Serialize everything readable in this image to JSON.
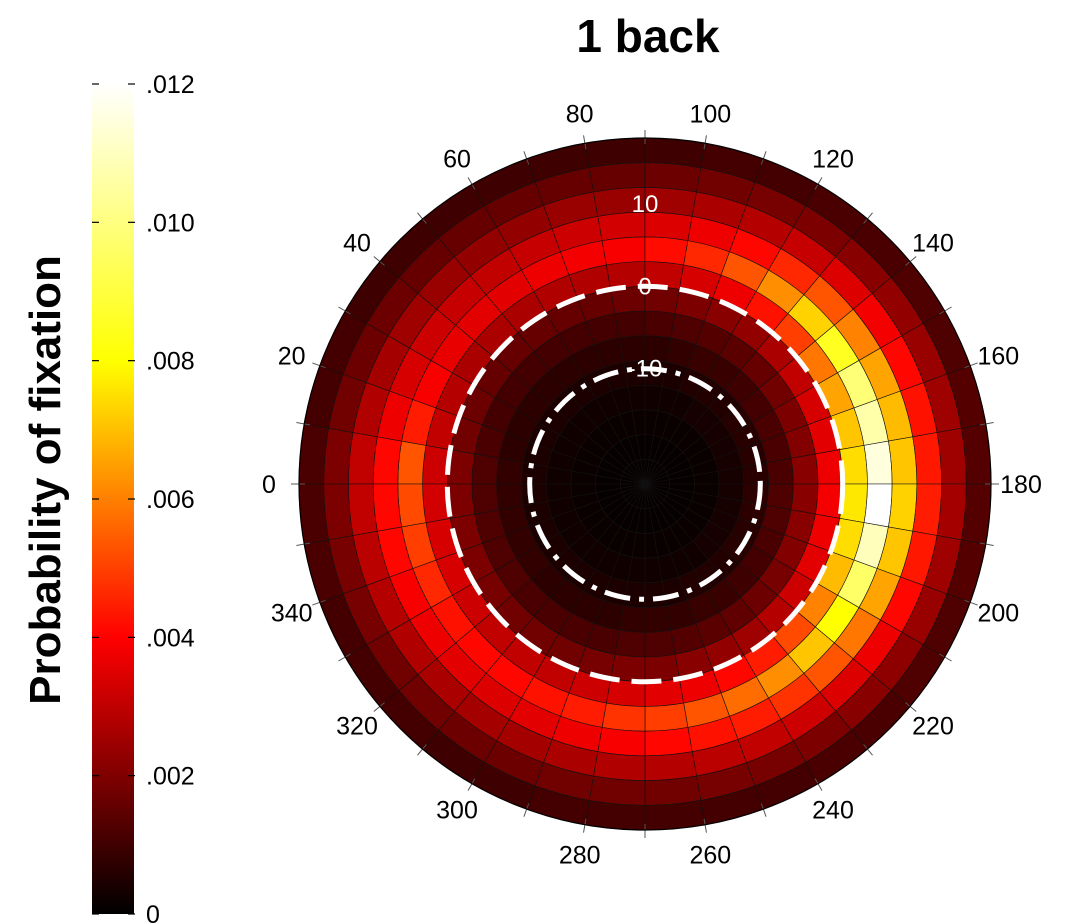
{
  "chart_data": {
    "type": "heatmap",
    "subtype": "polar",
    "title": "1 back",
    "colorbar": {
      "label": "Probability of fixation",
      "ticks": [
        "0",
        ".002",
        ".004",
        ".006",
        ".008",
        ".010",
        ".012"
      ],
      "min": 0,
      "max": 0.012,
      "colormap": "hot"
    },
    "angle_ticks": [
      "0",
      "20",
      "40",
      "60",
      "80",
      "100",
      "120",
      "140",
      "160",
      "180",
      "200",
      "220",
      "240",
      "260",
      "280",
      "300",
      "320",
      "340"
    ],
    "radial_labels": [
      "10",
      "0",
      "-10"
    ],
    "angle_bins": 36,
    "radius_bins": 14,
    "radius_range": [
      -24,
      18
    ],
    "reference_circles": [
      {
        "value": 0,
        "style": "dashed"
      },
      {
        "value": -10,
        "style": "dashdot"
      }
    ],
    "profile_notes": "rows = angle bins in 10-degree steps starting at 0 (left side); columns = radius bins from center outward",
    "peak_angles": [
      180,
      190,
      170,
      200,
      160,
      150,
      210
    ],
    "ring_baseline": [
      0.0001,
      0.0001,
      0.0002,
      0.0003,
      0.0005,
      0.0008,
      0.0012,
      0.0018,
      0.003,
      0.004,
      0.0034,
      0.0026,
      0.0018,
      0.0011
    ],
    "values": [
      [
        0.0001,
        0.0001,
        0.0002,
        0.0003,
        0.0005,
        0.0009,
        0.0014,
        0.0022,
        0.0036,
        0.006,
        0.0046,
        0.0034,
        0.0022,
        0.0013
      ],
      [
        0.0001,
        0.0001,
        0.0002,
        0.0003,
        0.0005,
        0.0008,
        0.0013,
        0.002,
        0.0034,
        0.005,
        0.0042,
        0.0031,
        0.002,
        0.0012
      ],
      [
        0.0001,
        0.0001,
        0.0002,
        0.0003,
        0.0005,
        0.0008,
        0.0012,
        0.0019,
        0.0032,
        0.0044,
        0.0038,
        0.0029,
        0.0019,
        0.0012
      ],
      [
        0.0001,
        0.0001,
        0.0002,
        0.0003,
        0.0005,
        0.0008,
        0.0012,
        0.0018,
        0.003,
        0.0041,
        0.0036,
        0.0028,
        0.0019,
        0.0011
      ],
      [
        0.0001,
        0.0001,
        0.0002,
        0.0003,
        0.0005,
        0.0008,
        0.0012,
        0.0018,
        0.003,
        0.004,
        0.0035,
        0.0027,
        0.0018,
        0.0011
      ],
      [
        0.0001,
        0.0001,
        0.0002,
        0.0003,
        0.0005,
        0.0008,
        0.0012,
        0.0018,
        0.003,
        0.004,
        0.0034,
        0.0026,
        0.0018,
        0.0011
      ],
      [
        0.0001,
        0.0001,
        0.0002,
        0.0003,
        0.0005,
        0.0008,
        0.0012,
        0.0018,
        0.0031,
        0.0042,
        0.0035,
        0.0026,
        0.0018,
        0.0011
      ],
      [
        0.0001,
        0.0001,
        0.0002,
        0.0003,
        0.0005,
        0.0008,
        0.0012,
        0.0018,
        0.0031,
        0.0043,
        0.0036,
        0.0027,
        0.0018,
        0.0011
      ],
      [
        0.0001,
        0.0001,
        0.0002,
        0.0003,
        0.0005,
        0.0008,
        0.0012,
        0.0019,
        0.0032,
        0.0044,
        0.0037,
        0.0027,
        0.0018,
        0.0011
      ],
      [
        0.0001,
        0.0001,
        0.0002,
        0.0003,
        0.0005,
        0.0008,
        0.0013,
        0.002,
        0.0034,
        0.0047,
        0.0039,
        0.0028,
        0.0019,
        0.0011
      ],
      [
        0.0001,
        0.0001,
        0.0002,
        0.0003,
        0.0005,
        0.0009,
        0.0014,
        0.0022,
        0.0038,
        0.0052,
        0.0042,
        0.003,
        0.002,
        0.0012
      ],
      [
        0.0001,
        0.0001,
        0.0002,
        0.0003,
        0.0006,
        0.001,
        0.0015,
        0.0024,
        0.0042,
        0.006,
        0.0046,
        0.0032,
        0.0021,
        0.0012
      ],
      [
        0.0001,
        0.0001,
        0.0002,
        0.0004,
        0.0006,
        0.001,
        0.0016,
        0.0026,
        0.0048,
        0.007,
        0.0052,
        0.0035,
        0.0022,
        0.0013
      ],
      [
        0.0001,
        0.0001,
        0.0002,
        0.0004,
        0.0006,
        0.0011,
        0.0018,
        0.003,
        0.0056,
        0.0082,
        0.006,
        0.0039,
        0.0024,
        0.0013
      ],
      [
        0.0001,
        0.0001,
        0.0002,
        0.0004,
        0.0007,
        0.0012,
        0.002,
        0.0034,
        0.0066,
        0.0094,
        0.0068,
        0.0043,
        0.0026,
        0.0014
      ],
      [
        0.0001,
        0.0001,
        0.0002,
        0.0004,
        0.0007,
        0.0013,
        0.0022,
        0.0038,
        0.0074,
        0.0104,
        0.0074,
        0.0046,
        0.0027,
        0.0014
      ],
      [
        0.0001,
        0.0001,
        0.0002,
        0.0004,
        0.0007,
        0.0013,
        0.0023,
        0.004,
        0.008,
        0.011,
        0.0078,
        0.0048,
        0.0028,
        0.0015
      ],
      [
        0.0001,
        0.0001,
        0.0002,
        0.0004,
        0.0007,
        0.0013,
        0.0024,
        0.0042,
        0.0084,
        0.0116,
        0.008,
        0.0049,
        0.0028,
        0.0015
      ],
      [
        0.0001,
        0.0001,
        0.0002,
        0.0004,
        0.0008,
        0.0014,
        0.0024,
        0.0043,
        0.0086,
        0.012,
        0.0082,
        0.005,
        0.0029,
        0.0015
      ],
      [
        0.0001,
        0.0001,
        0.0002,
        0.0004,
        0.0008,
        0.0014,
        0.0024,
        0.0042,
        0.0084,
        0.0112,
        0.008,
        0.0049,
        0.0028,
        0.0015
      ],
      [
        0.0001,
        0.0001,
        0.0002,
        0.0004,
        0.0007,
        0.0013,
        0.0023,
        0.004,
        0.0078,
        0.0102,
        0.0074,
        0.0046,
        0.0027,
        0.0014
      ],
      [
        0.0001,
        0.0001,
        0.0002,
        0.0004,
        0.0007,
        0.0012,
        0.0021,
        0.0036,
        0.0068,
        0.009,
        0.0066,
        0.0042,
        0.0025,
        0.0014
      ],
      [
        0.0001,
        0.0001,
        0.0002,
        0.0004,
        0.0006,
        0.0011,
        0.0019,
        0.0032,
        0.0058,
        0.008,
        0.006,
        0.0039,
        0.0024,
        0.0013
      ],
      [
        0.0001,
        0.0001,
        0.0002,
        0.0003,
        0.0006,
        0.001,
        0.0017,
        0.0028,
        0.005,
        0.007,
        0.0054,
        0.0036,
        0.0022,
        0.0013
      ],
      [
        0.0001,
        0.0001,
        0.0002,
        0.0003,
        0.0006,
        0.001,
        0.0016,
        0.0026,
        0.0046,
        0.0064,
        0.005,
        0.0034,
        0.0021,
        0.0012
      ],
      [
        0.0001,
        0.0001,
        0.0002,
        0.0003,
        0.0005,
        0.0009,
        0.0015,
        0.0024,
        0.0042,
        0.006,
        0.0048,
        0.0033,
        0.0021,
        0.0012
      ],
      [
        0.0001,
        0.0001,
        0.0002,
        0.0003,
        0.0005,
        0.0009,
        0.0014,
        0.0022,
        0.004,
        0.0056,
        0.0046,
        0.0032,
        0.002,
        0.0012
      ],
      [
        0.0001,
        0.0001,
        0.0002,
        0.0003,
        0.0005,
        0.0009,
        0.0014,
        0.0022,
        0.0038,
        0.0054,
        0.0044,
        0.0031,
        0.002,
        0.0012
      ],
      [
        0.0001,
        0.0001,
        0.0002,
        0.0003,
        0.0005,
        0.0008,
        0.0013,
        0.0021,
        0.0036,
        0.005,
        0.0042,
        0.003,
        0.002,
        0.0012
      ],
      [
        0.0001,
        0.0001,
        0.0002,
        0.0003,
        0.0005,
        0.0008,
        0.0013,
        0.002,
        0.0034,
        0.0048,
        0.004,
        0.0029,
        0.0019,
        0.0011
      ],
      [
        0.0001,
        0.0001,
        0.0002,
        0.0003,
        0.0005,
        0.0008,
        0.0013,
        0.002,
        0.0034,
        0.0046,
        0.0039,
        0.0029,
        0.0019,
        0.0011
      ],
      [
        0.0001,
        0.0001,
        0.0002,
        0.0003,
        0.0005,
        0.0008,
        0.0013,
        0.002,
        0.0034,
        0.0046,
        0.004,
        0.003,
        0.002,
        0.0012
      ],
      [
        0.0001,
        0.0001,
        0.0002,
        0.0003,
        0.0005,
        0.0009,
        0.0014,
        0.0021,
        0.0036,
        0.0048,
        0.0042,
        0.0031,
        0.002,
        0.0012
      ],
      [
        0.0001,
        0.0001,
        0.0002,
        0.0003,
        0.0005,
        0.0009,
        0.0014,
        0.0022,
        0.0038,
        0.0052,
        0.0044,
        0.0032,
        0.0021,
        0.0012
      ],
      [
        0.0001,
        0.0001,
        0.0002,
        0.0003,
        0.0005,
        0.0009,
        0.0014,
        0.0022,
        0.0038,
        0.0056,
        0.0046,
        0.0033,
        0.0021,
        0.0013
      ],
      [
        0.0001,
        0.0001,
        0.0002,
        0.0003,
        0.0005,
        0.0009,
        0.0014,
        0.0022,
        0.0037,
        0.0058,
        0.0046,
        0.0034,
        0.0022,
        0.0013
      ]
    ]
  }
}
